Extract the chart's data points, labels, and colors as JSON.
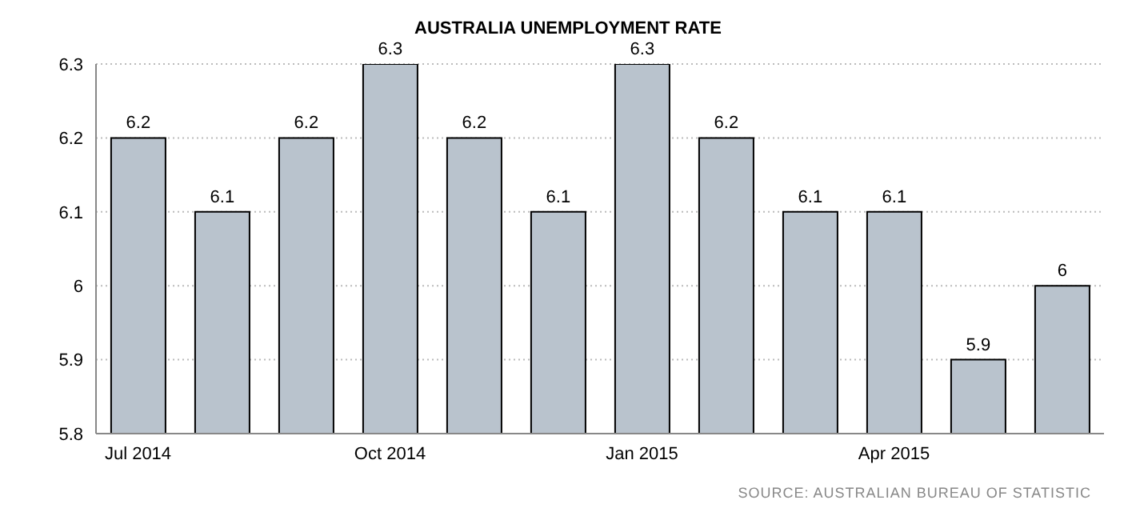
{
  "chart_data": {
    "type": "bar",
    "title": "AUSTRALIA UNEMPLOYMENT RATE",
    "categories": [
      "Jul 2014",
      null,
      null,
      "Oct 2014",
      null,
      null,
      "Jan 2015",
      null,
      null,
      "Apr 2015",
      null,
      null
    ],
    "values": [
      6.2,
      6.1,
      6.2,
      6.3,
      6.2,
      6.1,
      6.3,
      6.2,
      6.1,
      6.1,
      5.9,
      6
    ],
    "color": "#b9c3cd",
    "ylim": [
      5.8,
      6.3
    ],
    "yticks": [
      5.8,
      5.9,
      6,
      6.1,
      6.2,
      6.3
    ],
    "grid": "y",
    "data_labels": true,
    "annotations": [
      "SOURCE: AUSTRALIAN BUREAU OF STATISTIC"
    ]
  }
}
